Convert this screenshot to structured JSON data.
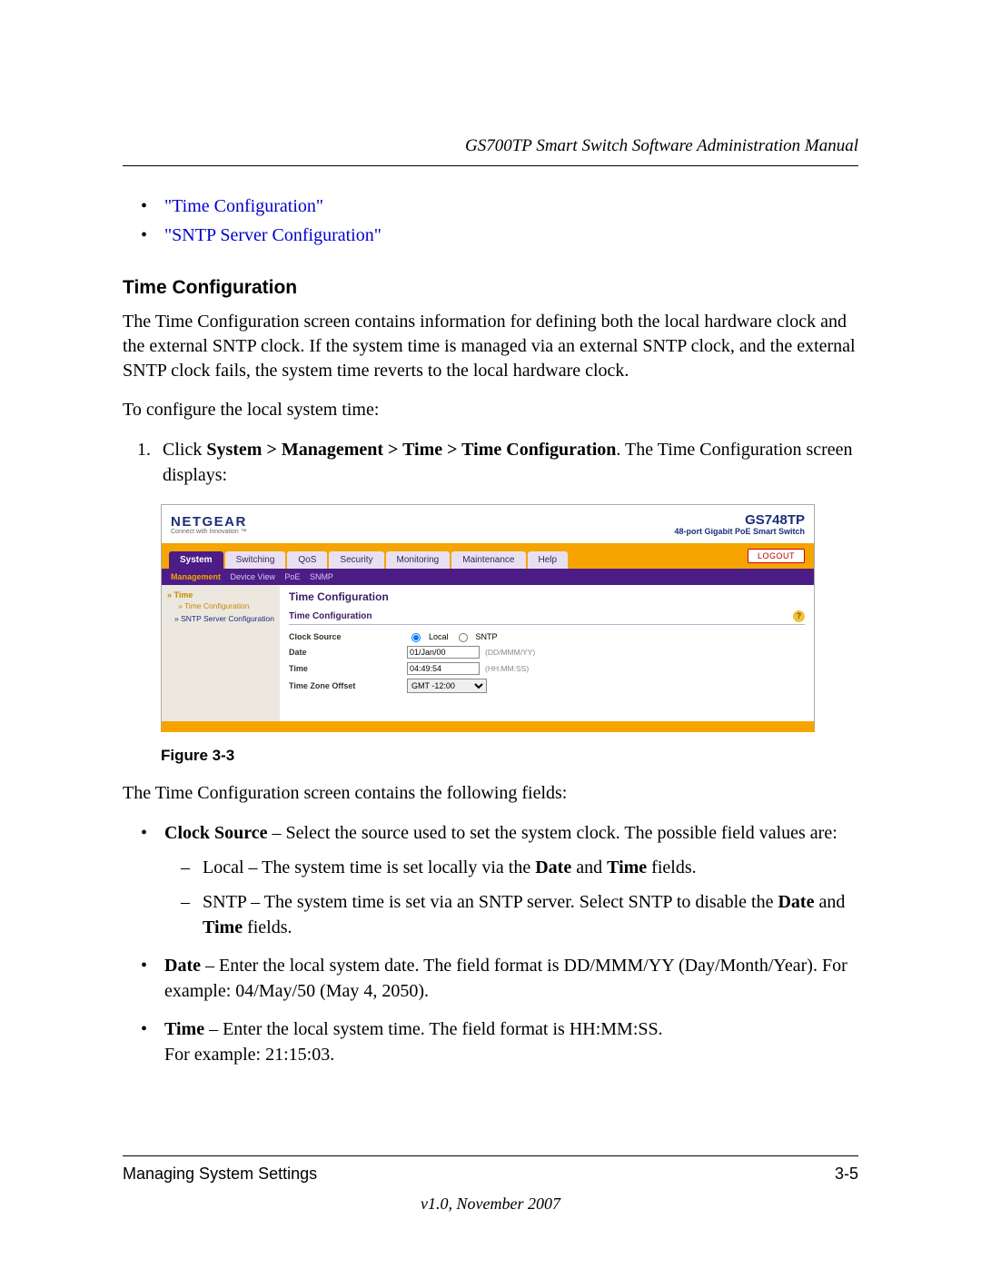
{
  "header": {
    "title": "GS700TP Smart Switch Software Administration Manual"
  },
  "links": {
    "time_config": "\"Time Configuration\"",
    "sntp_config": "\"SNTP Server Configuration\""
  },
  "section": {
    "heading": "Time Configuration"
  },
  "intro": {
    "p1": "The Time Configuration screen contains information for defining both the local hardware clock and the external SNTP clock. If the system time is managed via an external SNTP clock, and the external SNTP clock fails, the system time reverts to the local hardware clock.",
    "p2": "To configure the local system time:"
  },
  "step": {
    "prefix": "Click ",
    "bold": "System > Management > Time > Time Configuration",
    "suffix": ". The Time Configuration screen displays:"
  },
  "screenshot": {
    "brand": "NETGEAR",
    "brand_tag": "Connect with Innovation ™",
    "model": "GS748TP",
    "model_desc": "48-port Gigabit PoE Smart Switch",
    "tabs": [
      "System",
      "Switching",
      "QoS",
      "Security",
      "Monitoring",
      "Maintenance",
      "Help"
    ],
    "logout": "LOGOUT",
    "subnav": [
      "Management",
      "Device View",
      "PoE",
      "SNMP"
    ],
    "sidebar": {
      "group": "Time",
      "item1": "Time Configuration",
      "item2": "SNTP Server Configuration"
    },
    "panel": {
      "title": "Time Configuration",
      "subtitle": "Time Configuration",
      "rows": {
        "clock_source_label": "Clock Source",
        "clock_source_opt1": "Local",
        "clock_source_opt2": "SNTP",
        "date_label": "Date",
        "date_value": "01/Jan/00",
        "date_hint": "(DD/MMM/YY)",
        "time_label": "Time",
        "time_value": "04:49:54",
        "time_hint": "(HH:MM:SS)",
        "tz_label": "Time Zone Offset",
        "tz_value": "GMT -12:00"
      }
    },
    "colors": {
      "orange": "#f5a400",
      "purple": "#4c1c87",
      "navy": "#1a2f7a"
    }
  },
  "figure": {
    "caption": "Figure 3-3"
  },
  "after": {
    "lead": "The Time Configuration screen contains the following fields:"
  },
  "fields": {
    "clock": {
      "name": "Clock Source",
      "desc": " – Select the source used to set the system clock. The possible field values are:",
      "local_head": "Local – The system time is set locally via the ",
      "local_b1": "Date",
      "local_mid": " and ",
      "local_b2": "Time",
      "local_tail": " fields.",
      "sntp_head": "SNTP – The system time is set via an SNTP server. Select SNTP to disable the ",
      "sntp_b1": "Date",
      "sntp_mid": " and ",
      "sntp_b2": "Time",
      "sntp_tail": " fields."
    },
    "date": {
      "name": "Date",
      "desc": " – Enter the local system date. The field format is DD/MMM/YY (Day/Month/Year). For example: 04/May/50 (May 4, 2050)."
    },
    "time": {
      "name": "Time",
      "desc": " – Enter the local system time. The field format is HH:MM:SS.",
      "desc2": "For example: 21:15:03."
    }
  },
  "footer": {
    "left": "Managing System Settings",
    "right": "3-5",
    "version": "v1.0, November 2007"
  }
}
